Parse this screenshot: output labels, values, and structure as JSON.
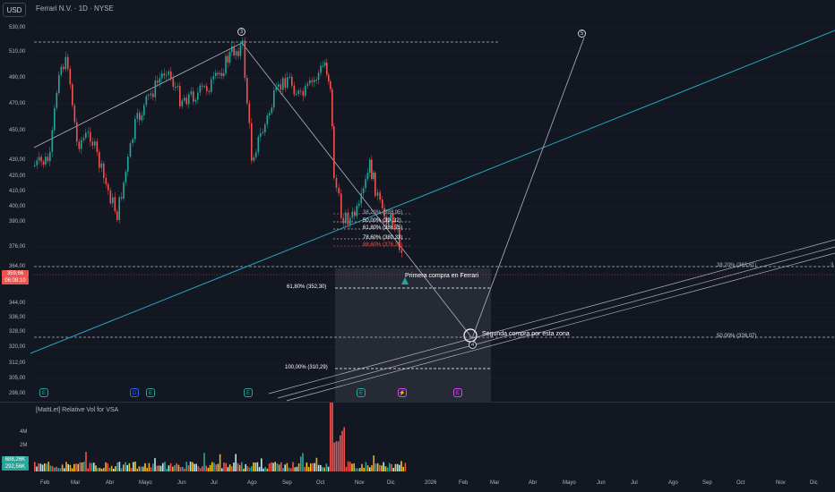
{
  "header": {
    "symbol_button": "USD",
    "title": "Ferrari N.V. · 1D · NYSE"
  },
  "yaxis": {
    "labels": [
      "530,00",
      "510,00",
      "490,00",
      "470,00",
      "450,00",
      "430,00",
      "420,00",
      "410,00",
      "400,00",
      "390,00",
      "376,00",
      "364,00",
      "344,00",
      "336,00",
      "328,00",
      "320,00",
      "312,00",
      "305,00",
      "298,00"
    ]
  },
  "price_tags": {
    "last": "359,66",
    "countdown": "06:08:10"
  },
  "xaxis": {
    "labels": [
      "Feb",
      "Mar",
      "Abr",
      "Mayo",
      "Jun",
      "Jul",
      "Ago",
      "Sep",
      "Oct",
      "Nov",
      "Dic",
      "2026",
      "Feb",
      "Mar",
      "Abr",
      "Mayo",
      "Jun",
      "Jul",
      "Ago",
      "Sep",
      "Oct",
      "Nov",
      "Dic"
    ]
  },
  "annotations": {
    "primera": "Primera compra en Ferrari",
    "segunda": "Segunda compra por esta zona",
    "fib_618": "61,80% (352,30)",
    "fib_100": "100,00% (310,29)",
    "fib_50_right": "50,00% (326,07)",
    "fib_382_right": "38,20% (363,61)",
    "fib_382_right_cut": "3",
    "wave3": "3",
    "wave4": "4",
    "wave5": "5"
  },
  "small_fib": [
    "38,20% (393,95)",
    "50,00% (39 ,32)",
    "61,80% (386,75)",
    "78,60% (380,33)",
    "88,60% (376,38)"
  ],
  "events": [
    {
      "label": "E",
      "color": "#26a69a"
    },
    {
      "label": "D",
      "color": "#2962ff"
    },
    {
      "label": "E",
      "color": "#26a69a"
    },
    {
      "label": "E",
      "color": "#26a69a"
    },
    {
      "label": "E",
      "color": "#26a69a"
    },
    {
      "label": "⚡",
      "color": "#e040fb"
    },
    {
      "label": "E",
      "color": "#e040fb"
    }
  ],
  "volume": {
    "title": "[MattLet] Relative Vol for VSA",
    "axis": [
      "4M",
      "2M"
    ],
    "tag1": "688,26K",
    "tag2": "292,56K"
  },
  "colors": {
    "up": "#26a69a",
    "down": "#ef5350",
    "trend": "#2aa3c7",
    "bg": "#131722"
  }
}
